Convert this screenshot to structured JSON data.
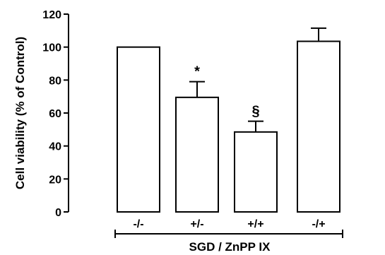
{
  "chart_data": {
    "type": "bar",
    "ylabel": "Cell viability (% of Control)",
    "xlabel": "SGD / ZnPP IX",
    "ylim": [
      0,
      120
    ],
    "yticks": [
      0,
      20,
      40,
      60,
      80,
      100,
      120
    ],
    "categories": [
      "-/-",
      "+/-",
      "+/+",
      "-/+"
    ],
    "values": [
      100,
      69.5,
      48.5,
      103.5
    ],
    "errors": [
      0,
      9.5,
      6.5,
      8
    ],
    "annotations": [
      "",
      "*",
      "§",
      ""
    ],
    "bar_fill": "#ffffff",
    "bar_stroke": "#000000",
    "grid": false
  }
}
